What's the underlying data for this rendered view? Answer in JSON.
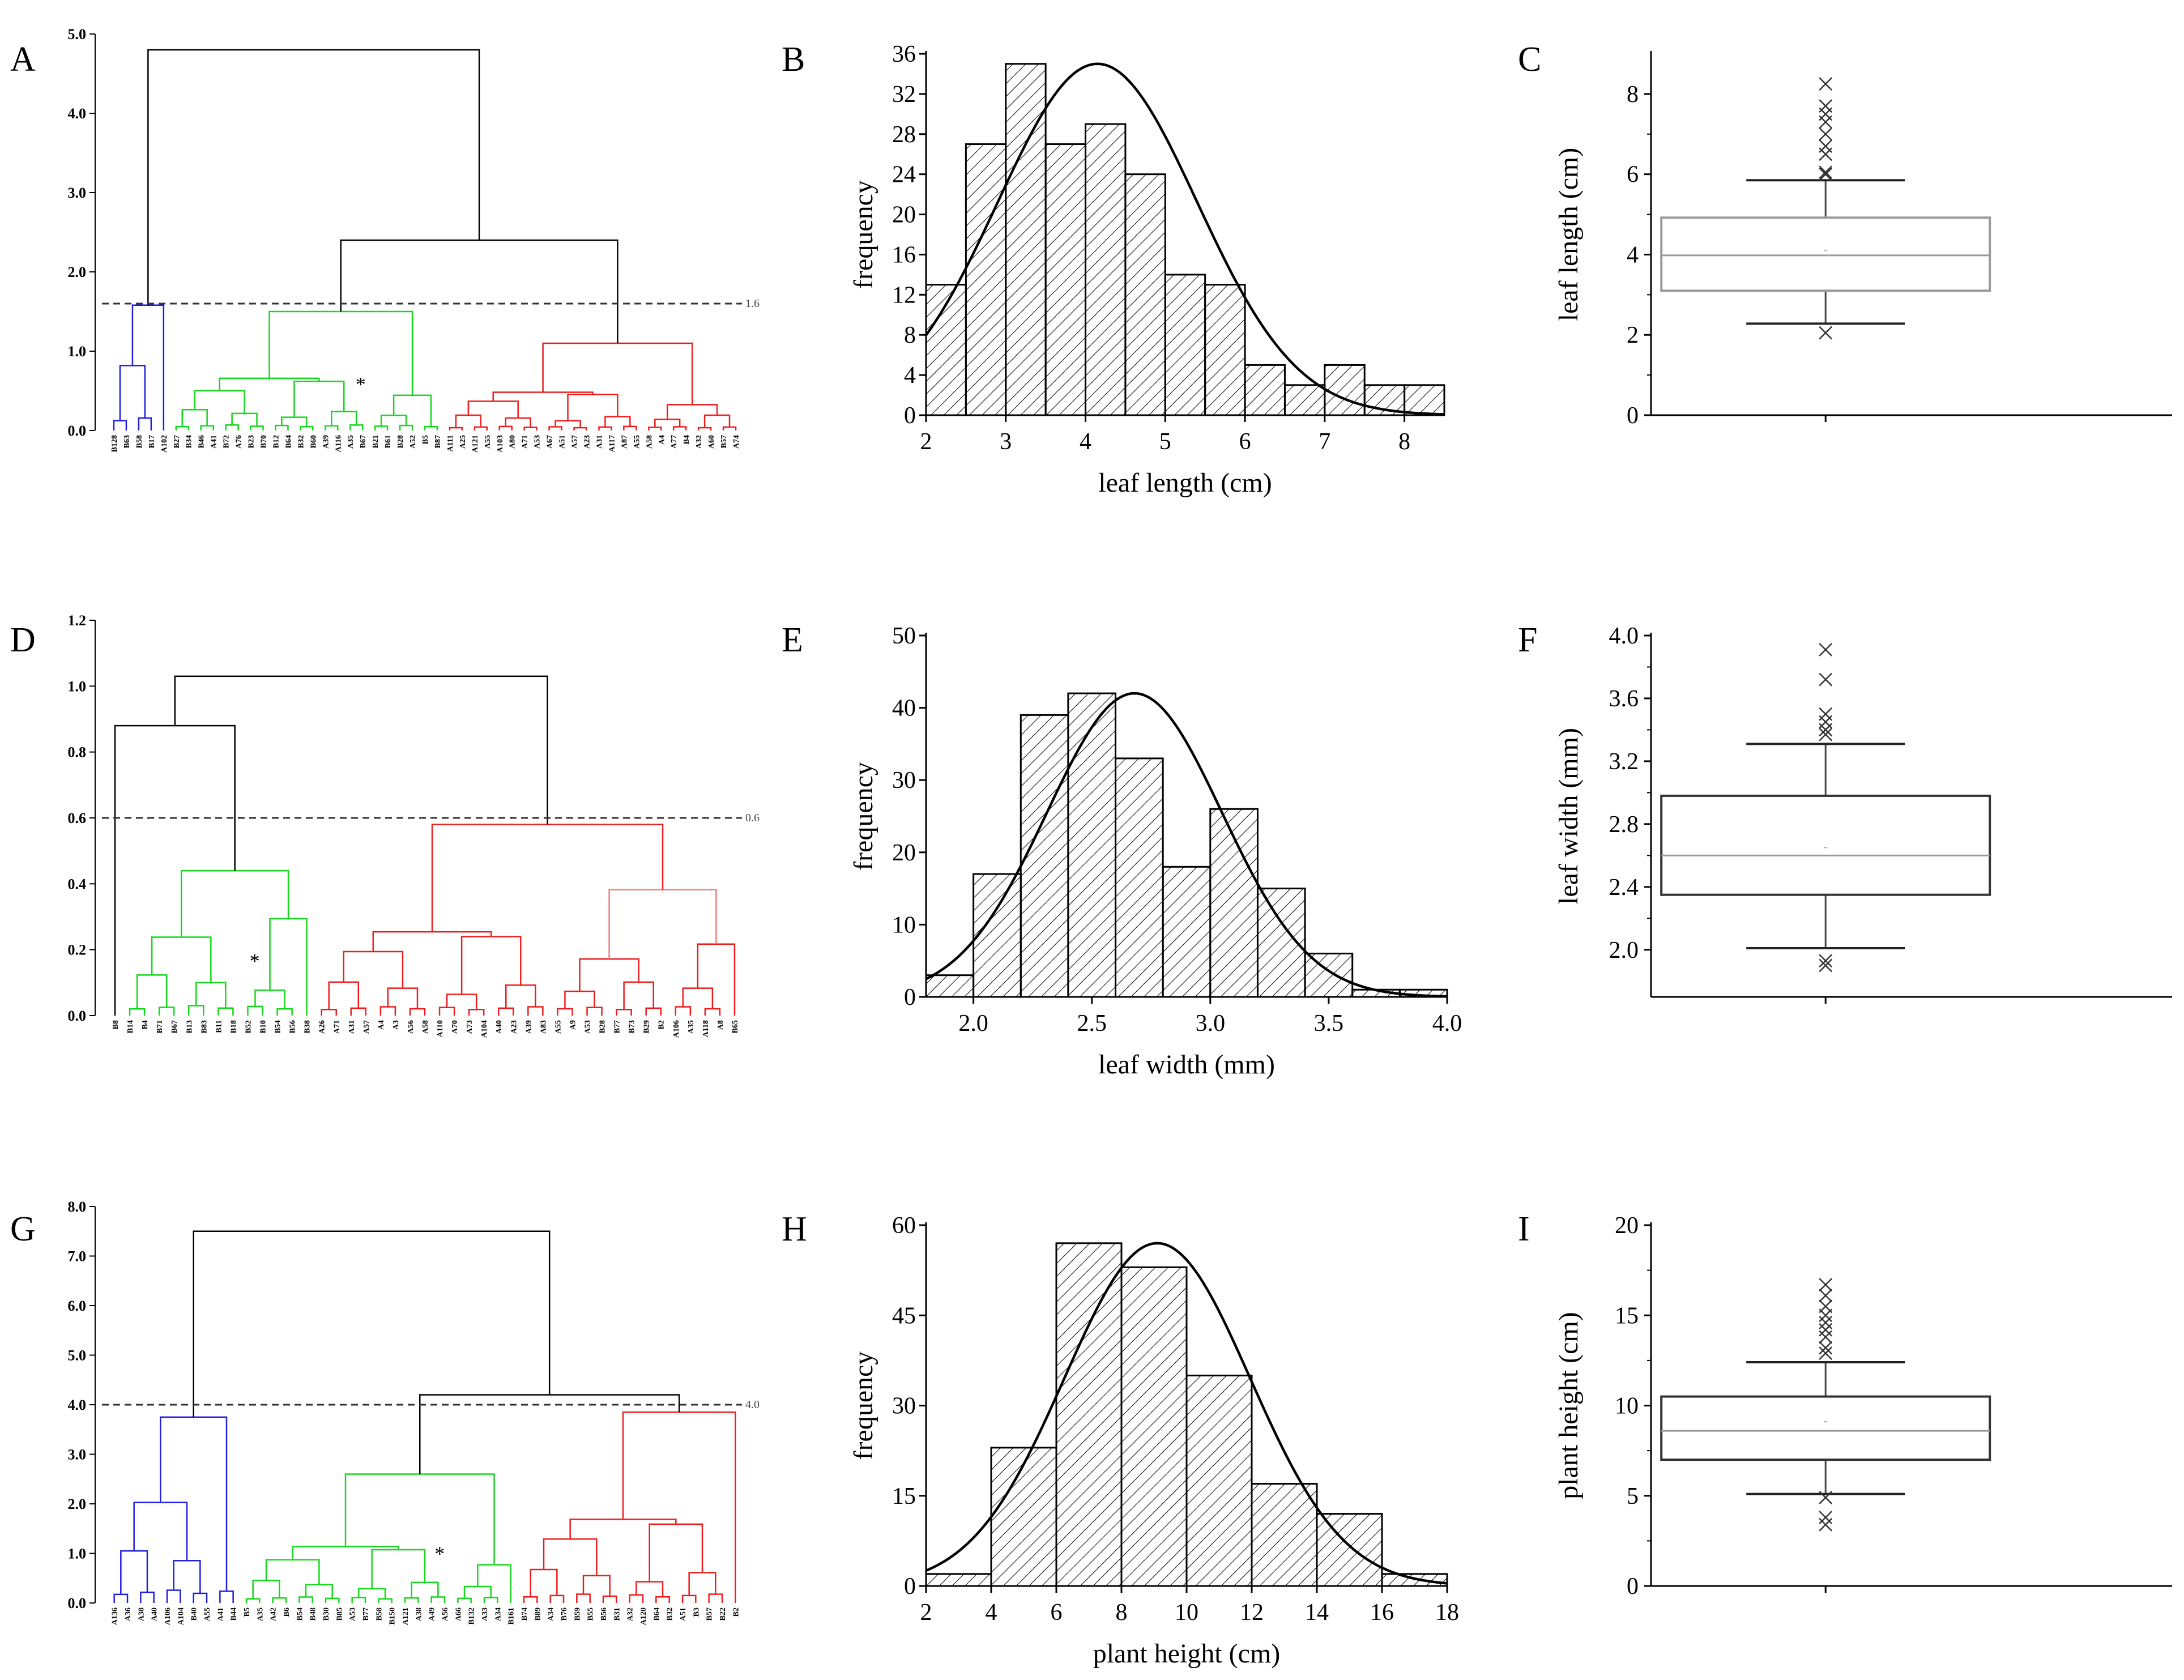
{
  "colors": {
    "cluster1": "#1f1fe0",
    "cluster2": "#13d91a",
    "cluster3": "#ef1c1c",
    "cluster3_light": "#f07d7d",
    "root": "#000000",
    "box_light": "#9a9a9a",
    "box_dark": "#333333"
  },
  "chart_data": [
    {
      "panel": "A",
      "type": "dendrogram",
      "yticks": [
        "0.0",
        "1.0",
        "2.0",
        "3.0",
        "4.0",
        "5.0"
      ],
      "ylim": [
        0,
        5
      ],
      "cut_height": 1.6,
      "cut_label": "1.6",
      "marker": "*",
      "top_merge": 4.8,
      "mid_merge": 2.4,
      "cluster_merges": [
        1.58,
        1.5,
        1.1
      ],
      "clusters": [
        {
          "color": "cluster1",
          "leaves": [
            "B128",
            "B63",
            "B58",
            "B17",
            "A102"
          ]
        },
        {
          "color": "cluster2",
          "leaves": [
            "B27",
            "B34",
            "B46",
            "A41",
            "B72",
            "A76",
            "B23",
            "B70",
            "B12",
            "B64",
            "B32",
            "B60",
            "A39",
            "A116",
            "A35",
            "B67",
            "B21",
            "B61",
            "B28",
            "A52",
            "B5",
            "B87"
          ]
        },
        {
          "color": "cluster3",
          "leaves": [
            "A111",
            "A25",
            "A121",
            "A55",
            "A103",
            "A80",
            "A71",
            "A53",
            "A67",
            "A51",
            "A57",
            "A23",
            "A31",
            "A117",
            "A87",
            "A55",
            "A58",
            "A4",
            "A77",
            "B4",
            "A32",
            "A60",
            "B57",
            "A74"
          ]
        }
      ]
    },
    {
      "panel": "B",
      "type": "histogram",
      "bins": [
        2,
        2.5,
        3,
        3.5,
        4,
        4.5,
        5,
        5.5,
        6,
        6.5,
        7,
        7.5,
        8,
        8.5
      ],
      "values": [
        13,
        27,
        35,
        27,
        29,
        24,
        14,
        13,
        5,
        3,
        5,
        3,
        3
      ],
      "fit": {
        "mean": 4.15,
        "sd": 1.25,
        "peak": 35
      },
      "xticks": [
        2,
        3,
        4,
        5,
        6,
        7,
        8
      ],
      "yticks": [
        0,
        4,
        8,
        12,
        16,
        20,
        24,
        28,
        32,
        36
      ],
      "xlim": [
        2,
        8.5
      ],
      "ylim": [
        0,
        36
      ],
      "xlabel": "leaf length (cm)",
      "ylabel": "frequency"
    },
    {
      "panel": "C",
      "type": "box",
      "yticks": [
        0,
        2,
        4,
        6,
        8
      ],
      "ylim": [
        0,
        9
      ],
      "q1": 3.1,
      "median": 3.98,
      "q3": 4.92,
      "mean": 4.1,
      "whisker_low": 2.28,
      "whisker_high": 5.85,
      "outliers": [
        2.05,
        6.0,
        6.05,
        6.5,
        6.7,
        7.0,
        7.3,
        7.5,
        7.7,
        8.25
      ],
      "ylabel": "leaf length (cm)"
    },
    {
      "panel": "D",
      "type": "dendrogram",
      "yticks": [
        "0.0",
        "0.2",
        "0.4",
        "0.6",
        "0.8",
        "1.0",
        "1.2"
      ],
      "ylim": [
        0,
        1.2
      ],
      "cut_height": 0.6,
      "cut_label": "0.6",
      "marker": "*",
      "top_merge": 1.03,
      "mid_merge": 0.88,
      "cluster_merges": [
        0.27,
        0.44,
        0.58
      ],
      "clusters": [
        {
          "color": "cluster1",
          "leaves": [
            "B8"
          ]
        },
        {
          "color": "cluster2",
          "leaves": [
            "B14",
            "B4",
            "B71",
            "B67",
            "B13",
            "B83",
            "B11",
            "B18",
            "B52",
            "B10",
            "B54",
            "B56",
            "B38"
          ]
        },
        {
          "color": "cluster3",
          "leaves": [
            "A26",
            "A71",
            "A31",
            "A57",
            "A4",
            "A3",
            "A56",
            "A58",
            "A110",
            "A70",
            "A73",
            "A104",
            "A40",
            "A23",
            "A39",
            "A83",
            "A55",
            "A9",
            "A53",
            "B28",
            "B77",
            "B73",
            "B29",
            "B2",
            "A106",
            "A35",
            "A118",
            "A8",
            "B65"
          ]
        }
      ]
    },
    {
      "panel": "E",
      "type": "histogram",
      "bins": [
        1.8,
        2.0,
        2.2,
        2.4,
        2.6,
        2.8,
        3.0,
        3.2,
        3.4,
        3.6,
        3.8,
        4.0
      ],
      "values": [
        3,
        17,
        39,
        42,
        33,
        18,
        26,
        15,
        6,
        1,
        1
      ],
      "fit": {
        "mean": 2.68,
        "sd": 0.37,
        "peak": 42
      },
      "xticks": [
        "2.0",
        "2.5",
        "3.0",
        "3.5",
        "4.0"
      ],
      "yticks": [
        0,
        10,
        20,
        30,
        40,
        50
      ],
      "xlim": [
        1.8,
        4.0
      ],
      "ylim": [
        0,
        50
      ],
      "xlabel": "leaf width (mm)",
      "ylabel": "frequency"
    },
    {
      "panel": "F",
      "type": "box",
      "yticks": [
        "2.0",
        "2.4",
        "2.8",
        "3.2",
        "3.6",
        "4.0"
      ],
      "ylim": [
        1.7,
        4.0
      ],
      "q1": 2.35,
      "median": 2.6,
      "q3": 2.98,
      "mean": 2.65,
      "whisker_low": 2.01,
      "whisker_high": 3.31,
      "outliers": [
        1.9,
        1.93,
        3.37,
        3.4,
        3.45,
        3.5,
        3.72,
        3.91
      ],
      "ylabel": "leaf width (mm)"
    },
    {
      "panel": "G",
      "type": "dendrogram",
      "yticks": [
        "0.0",
        "1.0",
        "2.0",
        "3.0",
        "4.0",
        "5.0",
        "6.0",
        "7.0",
        "8.0"
      ],
      "ylim": [
        0,
        8
      ],
      "cut_height": 4.0,
      "cut_label": "4.0",
      "marker": "*",
      "top_merge": 7.5,
      "mid_merge": 4.2,
      "cluster_merges": [
        3.75,
        2.6,
        3.85
      ],
      "clusters": [
        {
          "color": "cluster1",
          "leaves": [
            "A136",
            "A36",
            "A38",
            "A40",
            "A106",
            "A104",
            "B40",
            "A55",
            "A41",
            "B44"
          ]
        },
        {
          "color": "cluster2",
          "leaves": [
            "B5",
            "A35",
            "A42",
            "B6",
            "B54",
            "B48",
            "B30",
            "B85",
            "A53",
            "B77",
            "B58",
            "B150",
            "A121",
            "A38",
            "A49",
            "A56",
            "A66",
            "B132",
            "A33",
            "A34",
            "B161"
          ]
        },
        {
          "color": "cluster3",
          "leaves": [
            "B74",
            "B89",
            "A34",
            "B76",
            "B59",
            "B55",
            "B56",
            "B31",
            "A32",
            "A120",
            "B64",
            "B32",
            "A51",
            "B3",
            "B57",
            "B22",
            "B2"
          ]
        }
      ]
    },
    {
      "panel": "H",
      "type": "histogram",
      "bins": [
        2,
        4,
        6,
        8,
        10,
        12,
        14,
        16,
        18
      ],
      "values": [
        2,
        23,
        57,
        53,
        35,
        17,
        12,
        2
      ],
      "fit": {
        "mean": 9.1,
        "sd": 2.85,
        "peak": 57
      },
      "xticks": [
        2,
        4,
        6,
        8,
        10,
        12,
        14,
        16,
        18
      ],
      "yticks": [
        0,
        15,
        30,
        45,
        60
      ],
      "xlim": [
        2,
        18
      ],
      "ylim": [
        0,
        60
      ],
      "xlabel": "plant height (cm)",
      "ylabel": "frequency"
    },
    {
      "panel": "I",
      "type": "box",
      "yticks": [
        0,
        5,
        10,
        15,
        20
      ],
      "ylim": [
        0,
        20
      ],
      "q1": 7.0,
      "median": 8.6,
      "q3": 10.5,
      "mean": 9.1,
      "whisker_low": 5.1,
      "whisker_high": 12.4,
      "outliers": [
        3.4,
        3.8,
        4.9,
        12.9,
        13.2,
        13.8,
        14.2,
        14.6,
        15.0,
        15.5,
        16.1,
        16.7
      ],
      "ylabel": "plant height (cm)"
    }
  ]
}
